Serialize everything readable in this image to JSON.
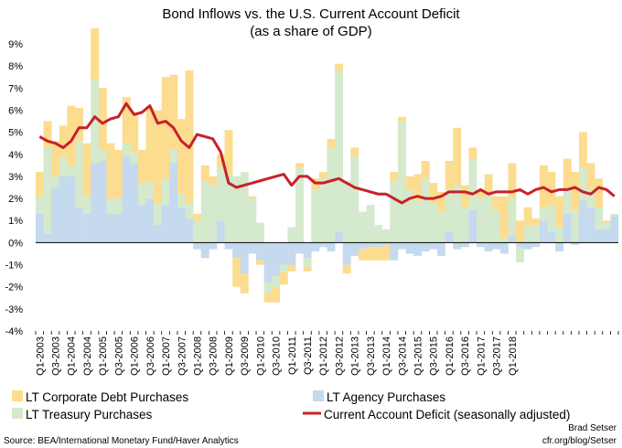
{
  "chart_data": {
    "type": "bar",
    "title": "Bond Inflows vs. the U.S. Current Account Deficit",
    "subtitle": "(as a share of GDP)",
    "ylim": [
      -4,
      9
    ],
    "yticks": [
      "-4%",
      "-3%",
      "-2%",
      "-1%",
      "0%",
      "1%",
      "2%",
      "3%",
      "4%",
      "5%",
      "6%",
      "7%",
      "8%",
      "9%"
    ],
    "grid": false,
    "legend_position": "bottom",
    "xtick_labels": [
      "Q1-2003",
      "Q3-2003",
      "Q1-2004",
      "Q3-2004",
      "Q1-2005",
      "Q3-2005",
      "Q1-2006",
      "Q3-2006",
      "Q1-2007",
      "Q3-2007",
      "Q1-2008",
      "Q3-2008",
      "Q1-2009",
      "Q3-2009",
      "Q1-2010",
      "Q3-2010",
      "Q1-2011",
      "Q3-2011",
      "Q1-2012",
      "Q3-2012",
      "Q1-2013",
      "Q3-2013",
      "Q1-2014",
      "Q3-2014",
      "Q1-2015",
      "Q3-2015",
      "Q1-2016",
      "Q3-2016",
      "Q1-2017",
      "Q3-2017",
      "Q1-2018"
    ],
    "series": [
      {
        "name": "LT Agency Purchases",
        "color": "#c5d9ef",
        "values": [
          1.3,
          0.4,
          2.5,
          3.0,
          3.0,
          1.6,
          1.3,
          3.6,
          3.7,
          1.3,
          1.3,
          3.9,
          3.6,
          1.7,
          2.0,
          0.8,
          1.7,
          3.6,
          1.6,
          1.1,
          -0.3,
          -0.7,
          -0.3,
          1.0,
          -0.3,
          -0.7,
          -1.4,
          -0.5,
          -0.8,
          -1.8,
          -1.5,
          -1.0,
          -1.0,
          -0.5,
          -0.7,
          -0.4,
          -0.2,
          -0.4,
          0.5,
          -1.0,
          -0.6,
          -0.3,
          -0.2,
          -0.2,
          -0.1,
          -0.8,
          -0.3,
          -0.5,
          -0.6,
          -0.4,
          -0.3,
          -0.6,
          0.5,
          -0.3,
          -0.2,
          1.5,
          -0.2,
          -0.4,
          -0.3,
          -0.5,
          0.3,
          -0.2,
          -0.3,
          -0.2,
          1.0,
          0.5,
          -0.4,
          1.3,
          -0.1,
          1.9,
          1.6,
          0.6,
          0.6,
          1.2
        ]
      },
      {
        "name": "LT Treasury Purchases",
        "color": "#d5e9cc",
        "values": [
          0.8,
          3.9,
          0.5,
          0.9,
          0.5,
          3.0,
          0.8,
          3.8,
          0.5,
          0.7,
          0.7,
          0.6,
          0.5,
          1.0,
          0.8,
          1.0,
          1.2,
          0.6,
          0.6,
          0.7,
          1.0,
          2.8,
          2.6,
          2.4,
          3.1,
          3.0,
          3.2,
          2.0,
          0.9,
          -0.5,
          -0.5,
          -0.3,
          0.7,
          3.4,
          -0.4,
          2.4,
          2.9,
          4.3,
          7.3,
          2.8,
          3.9,
          1.4,
          1.7,
          0.8,
          0.6,
          2.8,
          5.5,
          2.4,
          1.9,
          2.9,
          1.8,
          1.4,
          1.9,
          2.6,
          1.6,
          2.3,
          2.0,
          2.2,
          1.5,
          0.2,
          1.7,
          -0.7,
          0.8,
          0.8,
          0.6,
          1.2,
          0.7,
          1.2,
          1.5,
          1.5,
          0.8,
          1.0,
          0.3,
          0.1
        ]
      },
      {
        "name": "LT Corporate Debt Purchases",
        "color": "#fcdc8e",
        "values": [
          1.1,
          1.2,
          1.6,
          1.4,
          2.7,
          1.5,
          2.4,
          2.3,
          2.8,
          2.5,
          2.2,
          2.1,
          1.8,
          1.5,
          3.3,
          4.2,
          4.6,
          3.4,
          3.4,
          6.0,
          0.3,
          0.7,
          0.4,
          0.6,
          2.0,
          -1.3,
          -0.9,
          0.1,
          -0.2,
          -0.4,
          -0.7,
          -0.6,
          -0.3,
          0.2,
          -0.2,
          0.5,
          0.3,
          0.4,
          0.3,
          -0.4,
          0.4,
          -0.5,
          -0.6,
          -0.6,
          -0.7,
          0.4,
          0.2,
          0.6,
          1.2,
          0.8,
          0.9,
          0.9,
          1.3,
          2.6,
          1.0,
          0.5,
          0.4,
          0.9,
          0.6,
          1.9,
          1.6,
          1.0,
          0.8,
          0.3,
          1.9,
          1.5,
          1.4,
          1.3,
          1.7,
          1.6,
          1.2,
          1.3,
          0.1,
          0.0
        ]
      },
      {
        "name": "Current Account Deficit (seasonally adjusted)",
        "color": "#c8202a",
        "values": [
          4.8,
          4.6,
          4.5,
          4.3,
          4.6,
          5.2,
          5.2,
          5.7,
          5.4,
          5.6,
          5.7,
          6.3,
          5.8,
          5.9,
          6.2,
          5.4,
          5.5,
          5.2,
          4.6,
          4.3,
          4.9,
          4.8,
          4.7,
          4.1,
          2.7,
          2.5,
          2.6,
          2.7,
          2.8,
          2.9,
          3.0,
          3.1,
          2.6,
          3.0,
          3.0,
          2.7,
          2.7,
          2.8,
          2.9,
          2.7,
          2.5,
          2.4,
          2.3,
          2.2,
          2.2,
          2.0,
          1.8,
          2.0,
          2.1,
          2.0,
          2.0,
          2.1,
          2.3,
          2.3,
          2.3,
          2.2,
          2.4,
          2.2,
          2.3,
          2.3,
          2.3,
          2.4,
          2.2,
          2.4,
          2.5,
          2.3,
          2.4,
          2.4,
          2.5,
          2.3,
          2.2,
          2.5,
          2.4,
          2.1
        ]
      }
    ],
    "annotations": {
      "source": "Source: BEA/International Monetary Fund/Haver Analytics",
      "author": "Brad Setser",
      "url": "cfr.org/blog/Setser"
    }
  }
}
